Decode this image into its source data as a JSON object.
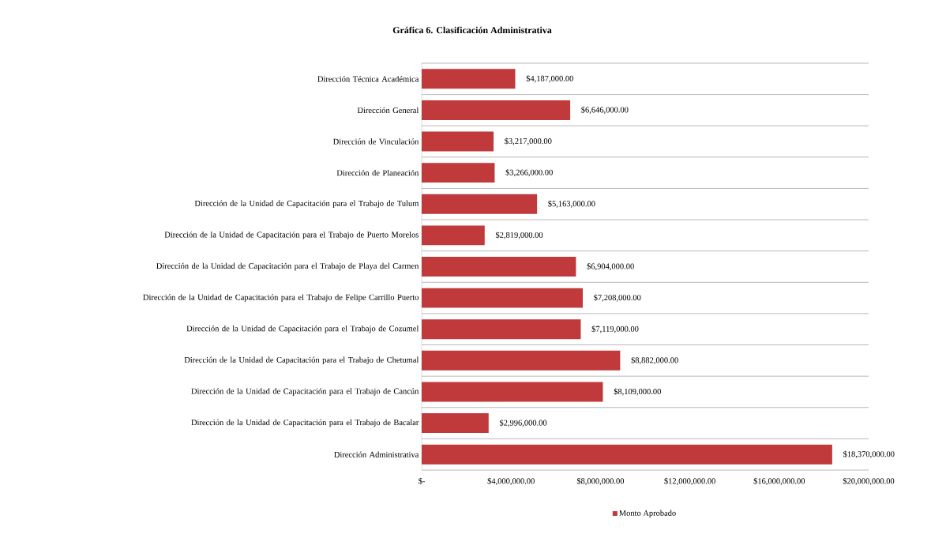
{
  "chart_data": {
    "type": "bar",
    "orientation": "horizontal",
    "title": "Gráfica 6. Clasificación Administrativa",
    "categories": [
      "Dirección Técnica Académica",
      "Dirección General",
      "Dirección de Vinculación",
      "Dirección de Planeación",
      "Dirección de la Unidad de Capacitación para el Trabajo de Tulum",
      "Dirección de la Unidad de Capacitación para el Trabajo de Puerto Morelos",
      "Dirección de la Unidad de Capacitación para el Trabajo de Playa del Carmen",
      "Dirección de la Unidad de Capacitación para el Trabajo de Felipe Carrillo Puerto",
      "Dirección de la Unidad de Capacitación para el Trabajo de Cozumel",
      "Dirección de la Unidad de Capacitación para el Trabajo de Chetumal",
      "Dirección de la Unidad de Capacitación para el Trabajo de Cancún",
      "Dirección de la Unidad de Capacitación para el Trabajo de Bacalar",
      "Dirección Administrativa"
    ],
    "series": [
      {
        "name": "Monto Aprobado",
        "color": "#c0393b",
        "values": [
          4187000,
          6646000,
          3217000,
          3266000,
          5163000,
          2819000,
          6904000,
          7208000,
          7119000,
          8882000,
          8109000,
          2996000,
          18370000
        ],
        "value_labels": [
          "$4,187,000.00",
          "$6,646,000.00",
          "$3,217,000.00",
          "$3,266,000.00",
          "$5,163,000.00",
          "$2,819,000.00",
          "$6,904,000.00",
          "$7,208,000.00",
          "$7,119,000.00",
          "$8,882,000.00",
          "$8,109,000.00",
          "$2,996,000.00",
          "$18,370,000.00"
        ]
      }
    ],
    "xlim": [
      0,
      20000000
    ],
    "xticks": [
      {
        "value": 0,
        "label": "$-"
      },
      {
        "value": 4000000,
        "label": "$4,000,000.00"
      },
      {
        "value": 8000000,
        "label": "$8,000,000.00"
      },
      {
        "value": 12000000,
        "label": "$12,000,000.00"
      },
      {
        "value": 16000000,
        "label": "$16,000,000.00"
      },
      {
        "value": 20000000,
        "label": "$20,000,000.00"
      }
    ],
    "grid": "y",
    "legend": "bottom"
  }
}
